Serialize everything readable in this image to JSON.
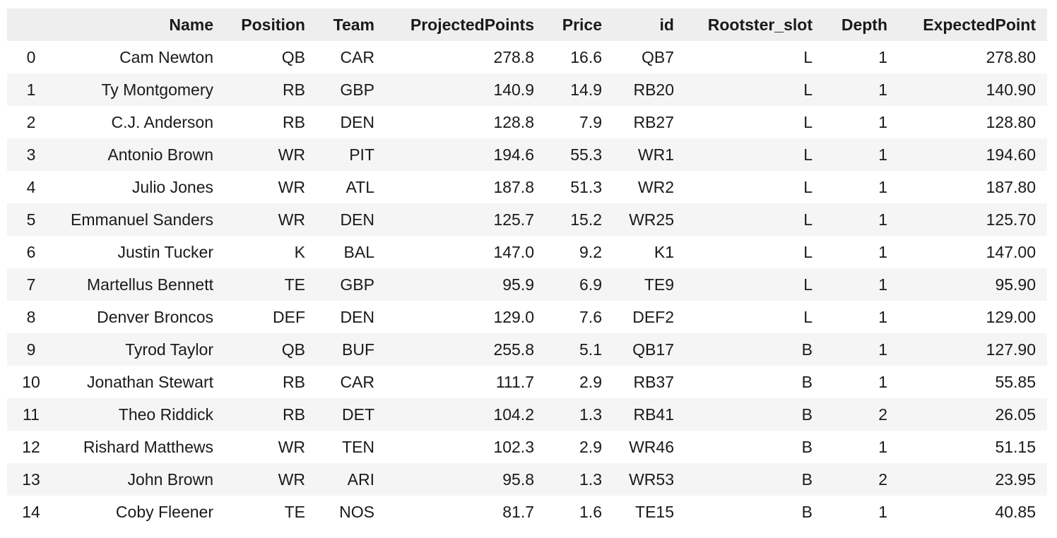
{
  "table": {
    "columns": [
      {
        "key": "index",
        "label": ""
      },
      {
        "key": "Name",
        "label": "Name"
      },
      {
        "key": "Position",
        "label": "Position"
      },
      {
        "key": "Team",
        "label": "Team"
      },
      {
        "key": "ProjectedPoints",
        "label": "ProjectedPoints"
      },
      {
        "key": "Price",
        "label": "Price"
      },
      {
        "key": "id",
        "label": "id"
      },
      {
        "key": "Rootster_slot",
        "label": "Rootster_slot"
      },
      {
        "key": "Depth",
        "label": "Depth"
      },
      {
        "key": "ExpectedPoint",
        "label": "ExpectedPoint"
      }
    ],
    "rows": [
      [
        "0",
        "Cam Newton",
        "QB",
        "CAR",
        "278.8",
        "16.6",
        "QB7",
        "L",
        "1",
        "278.80"
      ],
      [
        "1",
        "Ty Montgomery",
        "RB",
        "GBP",
        "140.9",
        "14.9",
        "RB20",
        "L",
        "1",
        "140.90"
      ],
      [
        "2",
        "C.J. Anderson",
        "RB",
        "DEN",
        "128.8",
        "7.9",
        "RB27",
        "L",
        "1",
        "128.80"
      ],
      [
        "3",
        "Antonio Brown",
        "WR",
        "PIT",
        "194.6",
        "55.3",
        "WR1",
        "L",
        "1",
        "194.60"
      ],
      [
        "4",
        "Julio Jones",
        "WR",
        "ATL",
        "187.8",
        "51.3",
        "WR2",
        "L",
        "1",
        "187.80"
      ],
      [
        "5",
        "Emmanuel Sanders",
        "WR",
        "DEN",
        "125.7",
        "15.2",
        "WR25",
        "L",
        "1",
        "125.70"
      ],
      [
        "6",
        "Justin Tucker",
        "K",
        "BAL",
        "147.0",
        "9.2",
        "K1",
        "L",
        "1",
        "147.00"
      ],
      [
        "7",
        "Martellus Bennett",
        "TE",
        "GBP",
        "95.9",
        "6.9",
        "TE9",
        "L",
        "1",
        "95.90"
      ],
      [
        "8",
        "Denver Broncos",
        "DEF",
        "DEN",
        "129.0",
        "7.6",
        "DEF2",
        "L",
        "1",
        "129.00"
      ],
      [
        "9",
        "Tyrod Taylor",
        "QB",
        "BUF",
        "255.8",
        "5.1",
        "QB17",
        "B",
        "1",
        "127.90"
      ],
      [
        "10",
        "Jonathan Stewart",
        "RB",
        "CAR",
        "111.7",
        "2.9",
        "RB37",
        "B",
        "1",
        "55.85"
      ],
      [
        "11",
        "Theo Riddick",
        "RB",
        "DET",
        "104.2",
        "1.3",
        "RB41",
        "B",
        "2",
        "26.05"
      ],
      [
        "12",
        "Rishard Matthews",
        "WR",
        "TEN",
        "102.3",
        "2.9",
        "WR46",
        "B",
        "1",
        "51.15"
      ],
      [
        "13",
        "John Brown",
        "WR",
        "ARI",
        "95.8",
        "1.3",
        "WR53",
        "B",
        "2",
        "23.95"
      ],
      [
        "14",
        "Coby Fleener",
        "TE",
        "NOS",
        "81.7",
        "1.6",
        "TE15",
        "B",
        "1",
        "40.85"
      ]
    ]
  }
}
